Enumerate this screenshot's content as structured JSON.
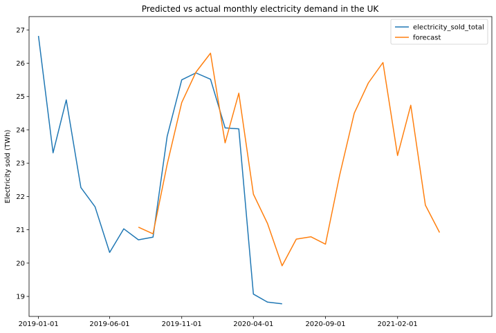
{
  "chart_data": {
    "type": "line",
    "title": "Predicted vs actual monthly electricity demand in the UK",
    "xlabel": "",
    "ylabel": "Electricity sold (TWh)",
    "ylim": [
      18.4,
      27.4
    ],
    "xlim": [
      "2018-12-12",
      "2021-08-20"
    ],
    "y_ticks": [
      19,
      20,
      21,
      22,
      23,
      24,
      25,
      26,
      27
    ],
    "x_ticks": [
      "2019-01-01",
      "2019-06-01",
      "2019-11-01",
      "2020-04-01",
      "2020-09-01",
      "2021-02-01"
    ],
    "grid": false,
    "legend_position": "top-right",
    "series": [
      {
        "name": "electricity_sold_total",
        "color": "#1f77b4",
        "x": [
          "2019-01-01",
          "2019-02-01",
          "2019-03-01",
          "2019-04-01",
          "2019-05-01",
          "2019-06-01",
          "2019-07-01",
          "2019-08-01",
          "2019-09-01",
          "2019-10-01",
          "2019-11-01",
          "2019-12-01",
          "2020-01-01",
          "2020-02-01",
          "2020-03-01",
          "2020-04-01",
          "2020-05-01",
          "2020-06-01"
        ],
        "values": [
          26.82,
          23.31,
          24.9,
          22.27,
          21.69,
          20.32,
          21.03,
          20.7,
          20.78,
          23.8,
          25.5,
          25.71,
          25.52,
          24.06,
          24.03,
          19.07,
          18.83,
          18.78
        ]
      },
      {
        "name": "forecast",
        "color": "#ff7f0e",
        "x": [
          "2019-08-01",
          "2019-09-01",
          "2019-10-01",
          "2019-11-01",
          "2019-12-01",
          "2020-01-01",
          "2020-02-01",
          "2020-03-01",
          "2020-04-01",
          "2020-05-01",
          "2020-06-01",
          "2020-07-01",
          "2020-08-01",
          "2020-09-01",
          "2020-10-01",
          "2020-11-01",
          "2020-12-01",
          "2021-01-01",
          "2021-02-01",
          "2021-03-01",
          "2021-04-01",
          "2021-05-01"
        ],
        "values": [
          21.08,
          20.88,
          22.96,
          24.82,
          25.73,
          26.3,
          23.61,
          25.1,
          22.07,
          21.19,
          19.92,
          20.72,
          20.79,
          20.57,
          22.64,
          24.5,
          25.41,
          26.02,
          23.23,
          24.74,
          21.74,
          20.92
        ]
      }
    ]
  }
}
